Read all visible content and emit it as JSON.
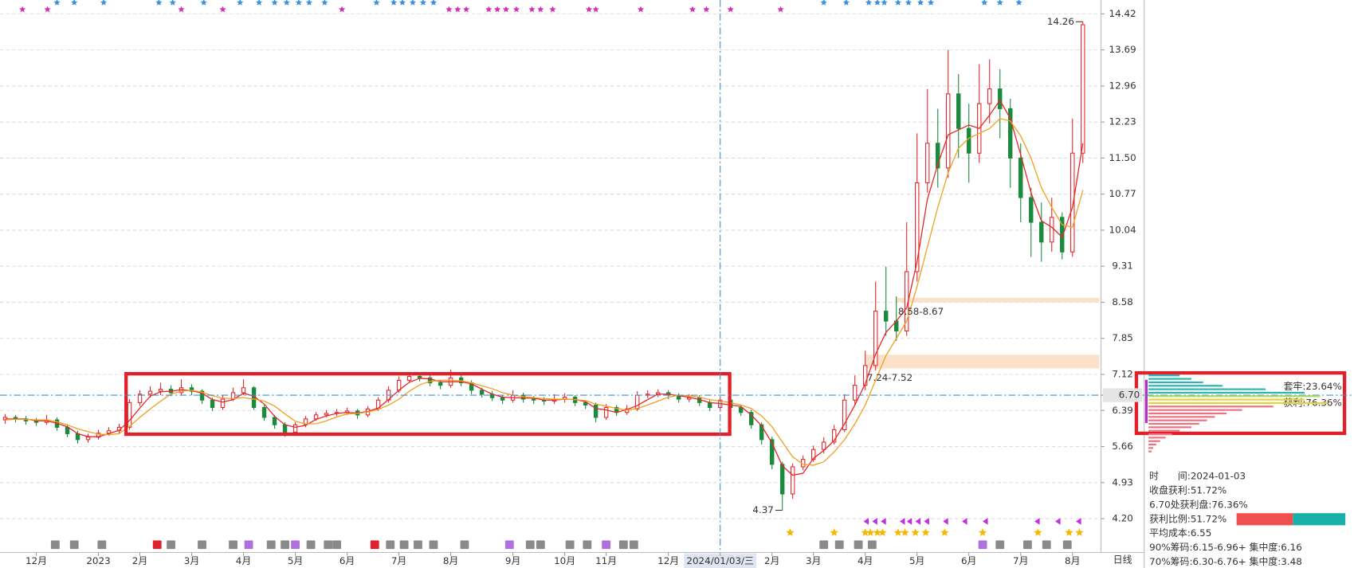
{
  "chart_data": {
    "type": "candlestick",
    "open": [
      6.2,
      6.25,
      6.22,
      6.18,
      6.15,
      6.2,
      6.05,
      5.92,
      5.8,
      5.85,
      5.93,
      5.98,
      6.05,
      6.55,
      6.72,
      6.78,
      6.82,
      6.75,
      6.85,
      6.78,
      6.6,
      6.45,
      6.62,
      6.75,
      6.85,
      6.45,
      6.25,
      6.1,
      5.95,
      6.1,
      6.22,
      6.3,
      6.33,
      6.35,
      6.38,
      6.3,
      6.42,
      6.6,
      6.8,
      7.0,
      7.08,
      7.05,
      6.95,
      6.9,
      7.05,
      6.95,
      6.8,
      6.72,
      6.65,
      6.6,
      6.7,
      6.62,
      6.6,
      6.58,
      6.62,
      6.66,
      6.55,
      6.5,
      6.25,
      6.45,
      6.35,
      6.42,
      6.7,
      6.72,
      6.75,
      6.7,
      6.62,
      6.65,
      6.55,
      6.45,
      6.6,
      6.45,
      6.35,
      6.1,
      5.8,
      5.3,
      4.7,
      5.25,
      5.4,
      5.6,
      5.75,
      6.0,
      6.6,
      6.9,
      7.3,
      8.4,
      8.2,
      8.0,
      9.2,
      11.0,
      11.8,
      11.3,
      12.8,
      12.1,
      11.6,
      12.6,
      12.9,
      12.5,
      11.5,
      10.7,
      10.2,
      9.8,
      10.3,
      9.6,
      11.6
    ],
    "high": [
      6.32,
      6.3,
      6.28,
      6.24,
      6.3,
      6.25,
      6.1,
      5.98,
      5.92,
      6.0,
      6.05,
      6.12,
      6.62,
      6.8,
      6.88,
      6.95,
      6.9,
      7.02,
      6.92,
      6.82,
      6.65,
      6.7,
      6.85,
      7.02,
      6.88,
      6.5,
      6.3,
      6.15,
      6.15,
      6.28,
      6.36,
      6.4,
      6.42,
      6.45,
      6.42,
      6.48,
      6.66,
      6.88,
      7.08,
      7.15,
      7.14,
      7.1,
      7.0,
      7.22,
      7.1,
      7.0,
      6.85,
      6.78,
      6.7,
      6.8,
      6.75,
      6.68,
      6.66,
      6.72,
      6.74,
      6.7,
      6.6,
      6.55,
      6.52,
      6.5,
      6.5,
      6.78,
      6.8,
      6.82,
      6.8,
      6.74,
      6.72,
      6.7,
      6.6,
      6.68,
      6.64,
      6.5,
      6.4,
      6.15,
      5.86,
      5.35,
      5.32,
      5.48,
      5.68,
      5.85,
      6.1,
      6.72,
      7.1,
      7.6,
      9.0,
      9.3,
      8.7,
      10.2,
      12.0,
      12.9,
      12.5,
      13.69,
      13.2,
      12.6,
      13.4,
      13.5,
      13.3,
      12.7,
      11.8,
      10.9,
      10.6,
      10.7,
      10.4,
      12.3,
      14.26
    ],
    "low": [
      6.12,
      6.15,
      6.1,
      6.08,
      6.1,
      5.98,
      5.85,
      5.72,
      5.74,
      5.8,
      5.88,
      5.92,
      6.0,
      6.48,
      6.65,
      6.7,
      6.68,
      6.7,
      6.7,
      6.52,
      6.38,
      6.4,
      6.58,
      6.7,
      6.4,
      6.18,
      6.02,
      5.86,
      5.9,
      6.05,
      6.18,
      6.25,
      6.28,
      6.3,
      6.22,
      6.25,
      6.38,
      6.55,
      6.75,
      6.95,
      6.98,
      6.88,
      6.82,
      6.85,
      6.88,
      6.72,
      6.65,
      6.58,
      6.52,
      6.55,
      6.55,
      6.52,
      6.5,
      6.52,
      6.55,
      6.48,
      6.42,
      6.15,
      6.2,
      6.28,
      6.3,
      6.38,
      6.64,
      6.66,
      6.62,
      6.55,
      6.56,
      6.48,
      6.38,
      6.4,
      6.38,
      6.28,
      6.02,
      5.7,
      5.2,
      4.37,
      4.6,
      5.18,
      5.35,
      5.52,
      5.7,
      5.95,
      6.5,
      6.8,
      7.2,
      7.9,
      7.8,
      7.9,
      9.0,
      10.8,
      10.9,
      11.1,
      11.5,
      11.0,
      11.4,
      12.2,
      11.9,
      10.9,
      10.2,
      9.5,
      9.4,
      9.6,
      9.45,
      9.5,
      11.4
    ],
    "close": [
      6.25,
      6.22,
      6.18,
      6.15,
      6.2,
      6.05,
      5.92,
      5.8,
      5.85,
      5.93,
      5.98,
      6.05,
      6.55,
      6.72,
      6.78,
      6.82,
      6.75,
      6.85,
      6.78,
      6.6,
      6.45,
      6.62,
      6.75,
      6.85,
      6.45,
      6.25,
      6.1,
      5.95,
      6.1,
      6.22,
      6.3,
      6.33,
      6.35,
      6.38,
      6.3,
      6.42,
      6.6,
      6.8,
      7.0,
      7.08,
      7.05,
      6.95,
      6.9,
      7.05,
      6.95,
      6.8,
      6.72,
      6.65,
      6.6,
      6.7,
      6.62,
      6.6,
      6.58,
      6.62,
      6.66,
      6.55,
      6.5,
      6.25,
      6.45,
      6.35,
      6.42,
      6.7,
      6.72,
      6.75,
      6.7,
      6.62,
      6.65,
      6.55,
      6.45,
      6.6,
      6.45,
      6.35,
      6.1,
      5.8,
      5.3,
      4.7,
      5.25,
      5.4,
      5.6,
      5.75,
      6.0,
      6.6,
      6.9,
      7.3,
      8.4,
      8.2,
      8.0,
      9.2,
      11.0,
      11.8,
      11.3,
      12.8,
      12.1,
      11.6,
      12.6,
      12.9,
      12.5,
      11.5,
      10.7,
      10.2,
      9.8,
      10.3,
      9.6,
      11.6,
      14.2
    ],
    "up_color": "#e8262a",
    "down_color": "#1a8a3c",
    "lines": [
      {
        "color": "#e8262a",
        "values": [
          6.22,
          6.22,
          6.22,
          6.18,
          6.18,
          6.13,
          6.06,
          5.92,
          5.86,
          5.86,
          5.92,
          5.99,
          6.19,
          6.44,
          6.68,
          6.77,
          6.78,
          6.81,
          6.79,
          6.74,
          6.61,
          6.56,
          6.61,
          6.74,
          6.68,
          6.52,
          6.27,
          6.1,
          6.05,
          6.09,
          6.21,
          6.28,
          6.33,
          6.35,
          6.34,
          6.37,
          6.44,
          6.61,
          6.8,
          6.96,
          7.04,
          7.03,
          6.97,
          6.97,
          6.97,
          6.93,
          6.82,
          6.72,
          6.66,
          6.65,
          6.64,
          6.64,
          6.6,
          6.6,
          6.62,
          6.61,
          6.57,
          6.43,
          6.4,
          6.35,
          6.41,
          6.49,
          6.61,
          6.72,
          6.72,
          6.69,
          6.66,
          6.61,
          6.55,
          6.53,
          6.5,
          6.47,
          6.3,
          6.08,
          5.73,
          5.27,
          5.08,
          5.12,
          5.42,
          5.58,
          5.78,
          6.12,
          6.5,
          6.93,
          7.53,
          7.97,
          8.2,
          8.47,
          9.4,
          10.67,
          11.37,
          11.97,
          12.07,
          12.17,
          12.1,
          12.37,
          12.67,
          12.3,
          11.57,
          10.8,
          10.23,
          10.1,
          9.9,
          10.5,
          11.8
        ]
      },
      {
        "color": "#f0a020",
        "values": [
          6.2,
          6.21,
          6.21,
          6.2,
          6.2,
          6.16,
          6.1,
          6.02,
          5.96,
          5.91,
          5.9,
          5.92,
          6.07,
          6.25,
          6.42,
          6.58,
          6.72,
          6.78,
          6.8,
          6.76,
          6.69,
          6.64,
          6.63,
          6.65,
          6.62,
          6.58,
          6.48,
          6.32,
          6.17,
          6.12,
          6.12,
          6.18,
          6.26,
          6.32,
          6.33,
          6.36,
          6.41,
          6.5,
          6.62,
          6.78,
          6.91,
          6.98,
          7.0,
          7.0,
          6.99,
          6.95,
          6.89,
          6.83,
          6.75,
          6.7,
          6.67,
          6.65,
          6.63,
          6.62,
          6.62,
          6.61,
          6.59,
          6.52,
          6.48,
          6.43,
          6.4,
          6.43,
          6.5,
          6.58,
          6.66,
          6.7,
          6.69,
          6.66,
          6.61,
          6.58,
          6.55,
          6.5,
          6.43,
          6.28,
          6.06,
          5.75,
          5.45,
          5.3,
          5.28,
          5.35,
          5.55,
          5.8,
          6.12,
          6.5,
          7.0,
          7.5,
          7.85,
          8.2,
          8.9,
          9.7,
          10.5,
          11.2,
          11.7,
          11.9,
          12.0,
          12.1,
          12.3,
          12.25,
          11.95,
          11.5,
          10.9,
          10.5,
          10.15,
          10.1,
          10.85
        ]
      }
    ],
    "xlim": [
      -0.5,
      105.75
    ],
    "xticks": [
      {
        "value": 3,
        "label": "12月"
      },
      {
        "value": 9,
        "label": "2023"
      },
      {
        "value": 13,
        "label": "2月"
      },
      {
        "value": 18,
        "label": "3月"
      },
      {
        "value": 23,
        "label": "4月"
      },
      {
        "value": 28,
        "label": "5月"
      },
      {
        "value": 33,
        "label": "6月"
      },
      {
        "value": 38,
        "label": "7月"
      },
      {
        "value": 43,
        "label": "8月"
      },
      {
        "value": 49,
        "label": "9月"
      },
      {
        "value": 54,
        "label": "10月"
      },
      {
        "value": 58,
        "label": "11月"
      },
      {
        "value": 64,
        "label": "12月"
      },
      {
        "value": 69,
        "label": "2024/01/03/三"
      },
      {
        "value": 74,
        "label": "2月"
      },
      {
        "value": 78,
        "label": "3月"
      },
      {
        "value": 83,
        "label": "4月"
      },
      {
        "value": 88,
        "label": "5月"
      },
      {
        "value": 93,
        "label": "6月"
      },
      {
        "value": 98,
        "label": "7月"
      },
      {
        "value": 103,
        "label": "8月"
      }
    ],
    "ylim": [
      4.04,
      14.7
    ],
    "yticks": [
      14.42,
      13.69,
      12.96,
      12.23,
      {
        "value": 11.5,
        "label": "11.50"
      },
      10.77,
      10.04,
      9.31,
      8.58,
      7.85,
      7.12,
      6.39,
      5.66,
      4.93,
      {
        "value": 4.2,
        "label": "4.20"
      }
    ],
    "grid": true,
    "crosshair": {
      "index": 69,
      "price": {
        "value": 6.7,
        "label": "6.70"
      }
    },
    "zones": [
      {
        "low": 8.58,
        "high": 8.67,
        "label": "8.58-8.67",
        "start": 86
      },
      {
        "low": 7.24,
        "high": 7.52,
        "label": "7.24-7.52",
        "start": 83
      }
    ],
    "period_label": "日线"
  },
  "chip_panel": {
    "trapped": "套牢:23.64%",
    "profit": "获利:76.36%",
    "info": [
      "时　　间:2024-01-03",
      "收盘获利:51.72%",
      "6.70处获利盘:76.36%",
      "获利比例:51.72%",
      "平均成本:6.55",
      "90%筹码:6.15-6.96+ 集中度:6.16",
      "70%筹码:6.30-6.76+ 集中度:3.48"
    ],
    "profit_ratio": 51.72,
    "distribution": {
      "prices": [
        7.1,
        7.03,
        6.96,
        6.89,
        6.82,
        6.75,
        6.68,
        6.61,
        6.54,
        6.47,
        6.4,
        6.33,
        6.26,
        6.19,
        6.12,
        6.05,
        5.98,
        5.91,
        5.84,
        5.77,
        5.7,
        5.63,
        5.56
      ],
      "values": [
        40,
        55,
        70,
        95,
        150,
        200,
        220,
        200,
        230,
        160,
        120,
        100,
        85,
        75,
        65,
        55,
        40,
        30,
        22,
        15,
        10,
        6,
        4
      ],
      "colors": [
        "#2ab5b0",
        "#2ab5b0",
        "#2ab5b0",
        "#2ab5b0",
        "#2ab5b0",
        "#2ab5b0",
        "#a8d860",
        "#e6d040",
        "#e6d040",
        "#f07080",
        "#f07080",
        "#f07080",
        "#f07080",
        "#f07080",
        "#f07080",
        "#f07080",
        "#f07080",
        "#f07080",
        "#f07080",
        "#f07080",
        "#f07080",
        "#f07080",
        "#f07080"
      ]
    }
  }
}
